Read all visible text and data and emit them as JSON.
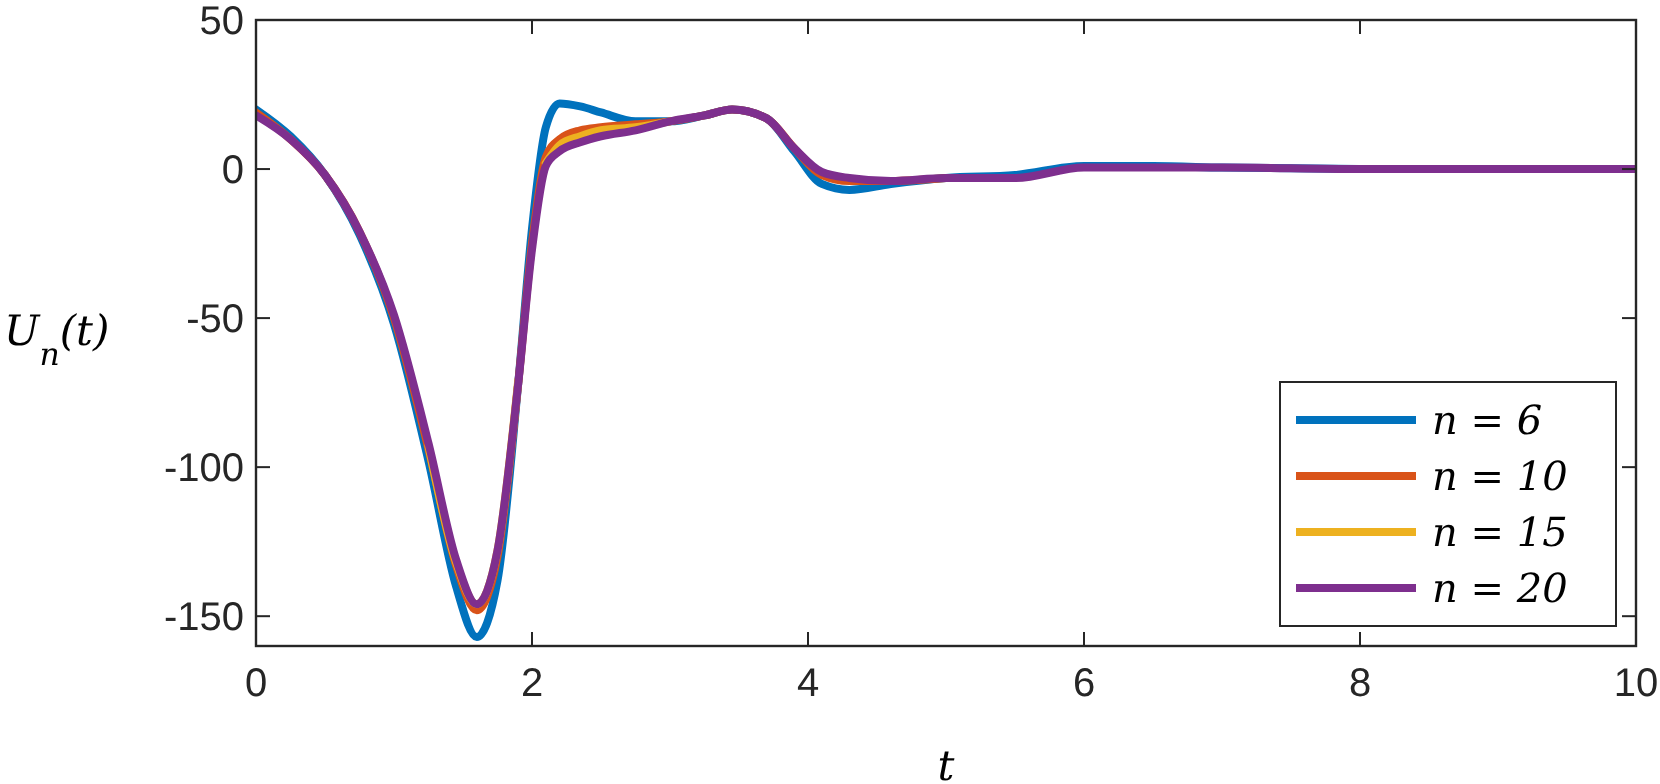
{
  "chart_data": {
    "type": "line",
    "xlabel": "t",
    "ylabel": "U$_{n}$(t)",
    "xlim": [
      0,
      10
    ],
    "ylim": [
      -160,
      50
    ],
    "xticks": [
      0,
      2,
      4,
      6,
      8,
      10
    ],
    "yticks": [
      -150,
      -100,
      -50,
      0,
      50
    ],
    "x": [
      0,
      0.25,
      0.5,
      0.75,
      1,
      1.25,
      1.45,
      1.6,
      1.75,
      1.9,
      2,
      2.1,
      2.2,
      2.35,
      2.5,
      2.75,
      3,
      3.25,
      3.45,
      3.7,
      3.9,
      4.1,
      4.3,
      4.6,
      5,
      5.5,
      6,
      6.5,
      7,
      8,
      9,
      10
    ],
    "legend": "bottom right",
    "grid": false,
    "series": [
      {
        "name": "n = 6",
        "color": "#0072bd",
        "values": [
          20,
          11,
          -2,
          -22,
          -52,
          -98,
          -140,
          -157,
          -138,
          -72,
          -20,
          14,
          22,
          21,
          19,
          16,
          16,
          18,
          20,
          17,
          6,
          -5,
          -7,
          -5,
          -3,
          -2,
          1,
          1,
          0.5,
          0,
          null,
          null
        ]
      },
      {
        "name": "n = 10",
        "color": "#d95319",
        "values": [
          19,
          10,
          -2,
          -21,
          -50,
          -94,
          -133,
          -148,
          -130,
          -72,
          -25,
          4,
          10,
          13,
          14,
          15,
          16,
          18,
          20,
          17,
          7,
          -2,
          -4,
          -4,
          -3,
          null,
          null,
          null,
          null,
          null,
          null,
          null
        ]
      },
      {
        "name": "n = 15",
        "color": "#edb120",
        "values": [
          null,
          null,
          null,
          null,
          null,
          -93,
          -132,
          -146,
          -128,
          -71,
          null,
          2,
          8,
          11,
          13,
          14,
          16,
          null,
          null,
          null,
          null,
          null,
          null,
          null,
          null,
          null,
          null,
          null,
          null,
          null,
          null,
          null
        ]
      },
      {
        "name": "n = 20",
        "color": "#7e2f8e",
        "values": [
          18,
          10,
          -2,
          -21,
          -49,
          -92,
          -131,
          -146,
          -128,
          -72,
          -27,
          1,
          6,
          9,
          11,
          13,
          16,
          18,
          20,
          17,
          7,
          -1,
          -3,
          -4,
          -3,
          -3,
          0.5,
          0.5,
          0.5,
          0,
          0,
          0
        ]
      }
    ]
  }
}
